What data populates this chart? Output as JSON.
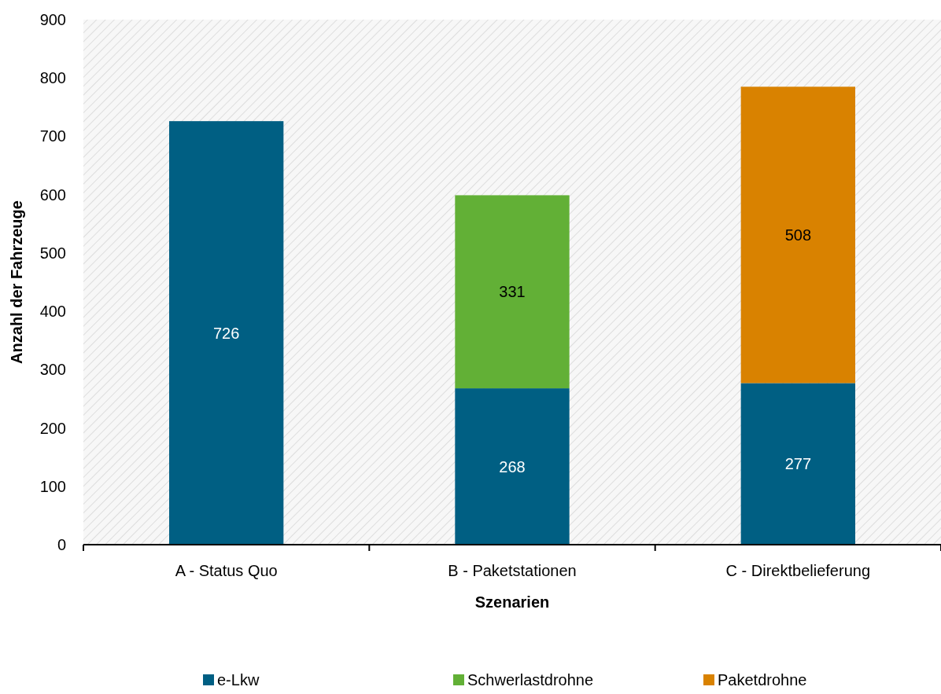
{
  "chart_data": {
    "type": "bar",
    "stacked": true,
    "xlabel": "Szenarien",
    "ylabel": "Anzahl der Fahrzeuge",
    "categories": [
      "A - Status Quo",
      "B - Paketstationen",
      "C - Direktbelieferung"
    ],
    "series": [
      {
        "name": "e-Lkw",
        "color": "#005f83",
        "values": [
          726,
          268,
          277
        ]
      },
      {
        "name": "Schwerlastdrohne",
        "color": "#62b036",
        "values": [
          null,
          331,
          null
        ]
      },
      {
        "name": "Paketdrohne",
        "color": "#d98200",
        "values": [
          null,
          null,
          508
        ]
      }
    ],
    "ylim": [
      0,
      900
    ],
    "yticks": [
      0,
      100,
      200,
      300,
      400,
      500,
      600,
      700,
      800,
      900
    ],
    "data_labels": true,
    "legend": "bottom",
    "grid": false
  }
}
